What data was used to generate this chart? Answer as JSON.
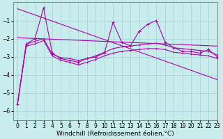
{
  "xlabel": "Windchill (Refroidissement éolien,°C)",
  "background_color": "#c8eceb",
  "grid_color": "#a8d8d8",
  "line_color": "#aa00aa",
  "x_hours": [
    0,
    1,
    2,
    3,
    4,
    5,
    6,
    7,
    8,
    9,
    10,
    11,
    12,
    13,
    14,
    15,
    16,
    17,
    18,
    19,
    20,
    21,
    22,
    23
  ],
  "series_main": [
    -5.6,
    -2.3,
    -2.0,
    -0.3,
    -2.8,
    -3.1,
    -3.2,
    -3.3,
    -3.1,
    -3.0,
    -2.8,
    -1.1,
    -2.2,
    -2.4,
    -1.6,
    -1.2,
    -1.0,
    -2.2,
    -2.5,
    -2.7,
    -2.7,
    -2.8,
    -2.6,
    -3.0
  ],
  "series_band_upper": [
    -5.6,
    -2.3,
    -2.15,
    -2.0,
    -2.85,
    -3.05,
    -3.1,
    -3.2,
    -3.1,
    -2.95,
    -2.75,
    -2.55,
    -2.45,
    -2.4,
    -2.35,
    -2.3,
    -2.25,
    -2.35,
    -2.5,
    -2.55,
    -2.6,
    -2.65,
    -2.7,
    -2.9
  ],
  "series_band_lower": [
    -5.6,
    -2.4,
    -2.3,
    -2.1,
    -2.95,
    -3.2,
    -3.3,
    -3.45,
    -3.3,
    -3.15,
    -2.95,
    -2.8,
    -2.7,
    -2.65,
    -2.6,
    -2.55,
    -2.55,
    -2.6,
    -2.75,
    -2.8,
    -2.85,
    -2.9,
    -2.95,
    -3.1
  ],
  "series_regr": [
    -1.95,
    -1.97,
    -1.99,
    -2.01,
    -2.03,
    -2.05,
    -2.07,
    -2.09,
    -2.11,
    -2.13,
    -2.15,
    -2.17,
    -2.19,
    -2.21,
    -2.23,
    -2.25,
    -2.27,
    -2.29,
    -2.31,
    -2.33,
    -2.35,
    -2.37,
    -2.39,
    -2.41
  ],
  "series_trend": [
    -0.35,
    -0.52,
    -0.69,
    -0.86,
    -1.03,
    -1.2,
    -1.37,
    -1.54,
    -1.71,
    -1.88,
    -2.05,
    -2.22,
    -2.39,
    -2.56,
    -2.73,
    -2.9,
    -3.07,
    -3.24,
    -3.41,
    -3.58,
    -3.75,
    -3.92,
    -4.09,
    -4.26
  ],
  "ylim": [
    -6.5,
    -0.0
  ],
  "xlim": [
    -0.5,
    23
  ],
  "yticks": [
    -6,
    -5,
    -4,
    -3,
    -2,
    -1
  ],
  "xticks": [
    0,
    1,
    2,
    3,
    4,
    5,
    6,
    7,
    8,
    9,
    10,
    11,
    12,
    13,
    14,
    15,
    16,
    17,
    18,
    19,
    20,
    21,
    22,
    23
  ],
  "tick_fontsize": 5.5,
  "xlabel_fontsize": 6.5
}
